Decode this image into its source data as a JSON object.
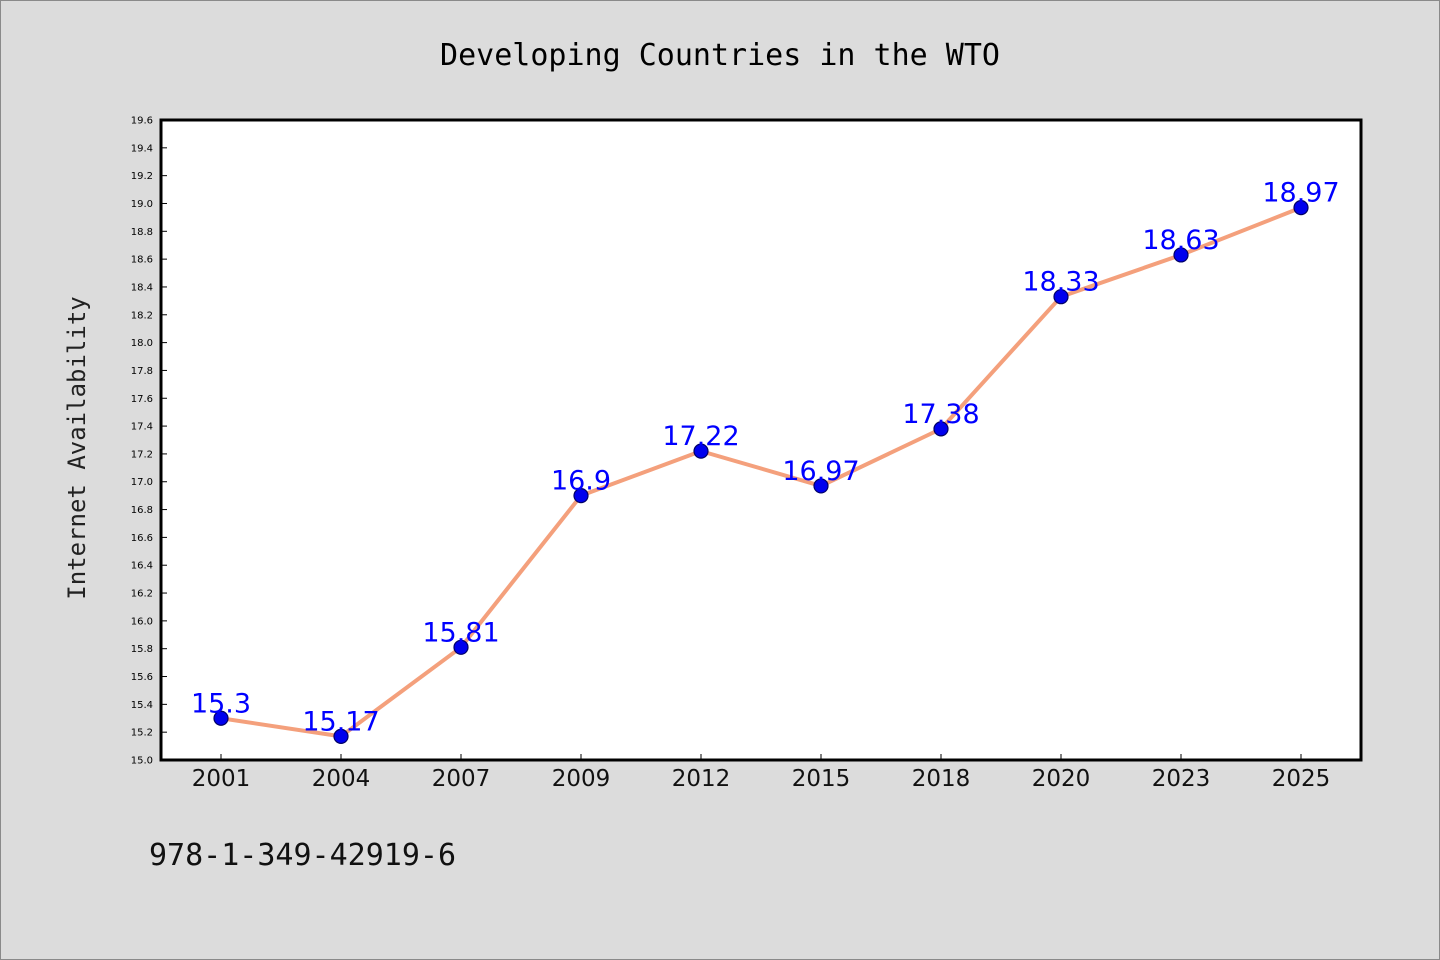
{
  "chart_data": {
    "type": "line",
    "title": "Developing Countries in the WTO",
    "xlabel": "",
    "ylabel": "Internet Availability",
    "categories": [
      "2001",
      "2004",
      "2007",
      "2009",
      "2012",
      "2015",
      "2018",
      "2020",
      "2023",
      "2025"
    ],
    "values": [
      15.3,
      15.17,
      15.81,
      16.9,
      17.22,
      16.97,
      17.38,
      18.33,
      18.63,
      18.97
    ],
    "data_labels": [
      "15.3",
      "15.17",
      "15.81",
      "16.9",
      "17.22",
      "16.97",
      "17.38",
      "18.33",
      "18.63",
      "18.97"
    ],
    "ylim": [
      15.0,
      19.6
    ],
    "ytick_step": 0.2,
    "grid": false,
    "legend": "none",
    "colors": {
      "background": "#dcdcdc",
      "plot_background": "#ffffff",
      "line": "#f4a07c",
      "marker_fill": "#0000ee",
      "marker_edge": "#000066",
      "data_label": "#0000ff",
      "text": "#000000"
    }
  },
  "footer": {
    "isbn": "978-1-349-42919-6"
  }
}
